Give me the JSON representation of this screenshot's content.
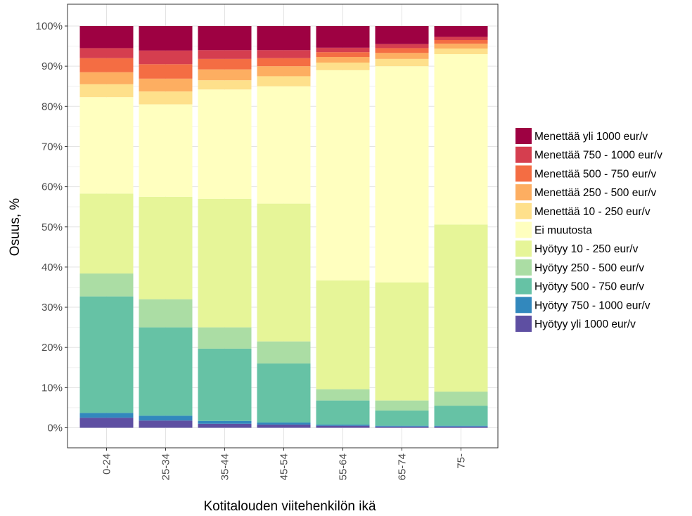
{
  "chart_data": {
    "type": "bar",
    "stacked": true,
    "percent": true,
    "categories": [
      "0-24",
      "25-34",
      "35-44",
      "45-54",
      "55-64",
      "65-74",
      "75-"
    ],
    "xlabel": "Kotitalouden viitehenkilön ikä",
    "ylabel": "Osuus, %",
    "ylim": [
      0,
      100
    ],
    "y_ticks": [
      "0%",
      "10%",
      "20%",
      "30%",
      "40%",
      "50%",
      "60%",
      "70%",
      "80%",
      "90%",
      "100%"
    ],
    "grid": true,
    "legend_position": "right",
    "series": [
      {
        "name": "Hyötyy yli 1000 eur/v",
        "color": "#5E4FA2",
        "values": [
          2.5,
          1.8,
          1.0,
          0.8,
          0.5,
          0.3,
          0.3
        ]
      },
      {
        "name": "Hyötyy 750 - 1000 eur/v",
        "color": "#3288BD",
        "values": [
          1.2,
          1.2,
          0.7,
          0.5,
          0.3,
          0.2,
          0.2
        ]
      },
      {
        "name": "Hyötyy 500 - 750 eur/v",
        "color": "#66C2A5",
        "values": [
          29.0,
          22.0,
          18.0,
          14.7,
          6.0,
          3.8,
          5.0
        ]
      },
      {
        "name": "Hyötyy 250 - 500 eur/v",
        "color": "#ABDDA4",
        "values": [
          5.7,
          7.0,
          5.3,
          5.5,
          2.8,
          2.5,
          3.5
        ]
      },
      {
        "name": "Hyötyy 10 - 250 eur/v",
        "color": "#E6F598",
        "values": [
          19.9,
          25.5,
          32.0,
          34.3,
          27.1,
          29.4,
          41.6
        ]
      },
      {
        "name": "Ei muutosta",
        "color": "#FFFFBF",
        "values": [
          24.0,
          23.0,
          27.2,
          29.2,
          52.3,
          53.8,
          42.4
        ]
      },
      {
        "name": "Menettää 10 - 250 eur/v",
        "color": "#FEE08B",
        "values": [
          3.2,
          3.2,
          2.3,
          2.5,
          1.9,
          1.8,
          1.4
        ]
      },
      {
        "name": "Menettää 250 - 500 eur/v",
        "color": "#FDAE61",
        "values": [
          3.0,
          3.2,
          2.7,
          2.5,
          1.4,
          1.5,
          1.2
        ]
      },
      {
        "name": "Menettää 500 - 750 eur/v",
        "color": "#F46D43",
        "values": [
          3.5,
          3.6,
          2.6,
          2.0,
          1.2,
          1.2,
          0.9
        ]
      },
      {
        "name": "Menettää 750 - 1000 eur/v",
        "color": "#D53E4F",
        "values": [
          2.5,
          3.4,
          2.2,
          2.0,
          1.1,
          1.0,
          0.8
        ]
      },
      {
        "name": "Menettää yli 1000 eur/v",
        "color": "#9E0142",
        "values": [
          5.5,
          6.1,
          6.0,
          6.0,
          5.4,
          4.5,
          2.7
        ]
      }
    ]
  }
}
